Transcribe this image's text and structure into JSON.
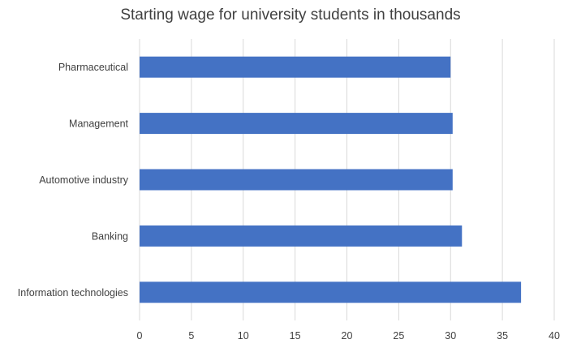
{
  "chart_data": {
    "type": "bar",
    "orientation": "horizontal",
    "title": "Starting wage for university students in thousands",
    "xlabel": "",
    "ylabel": "",
    "categories": [
      "Pharmaceutical",
      "Management",
      "Automotive industry",
      "Banking",
      "Information technologies"
    ],
    "values": [
      30,
      30.2,
      30.2,
      31.1,
      36.8
    ],
    "xlim": [
      0,
      40
    ],
    "xticks": [
      0,
      5,
      10,
      15,
      20,
      25,
      30,
      35,
      40
    ],
    "grid": "vertical",
    "legend": "none",
    "bar_color": "#4472C4",
    "grid_color": "#d9d9d9"
  }
}
